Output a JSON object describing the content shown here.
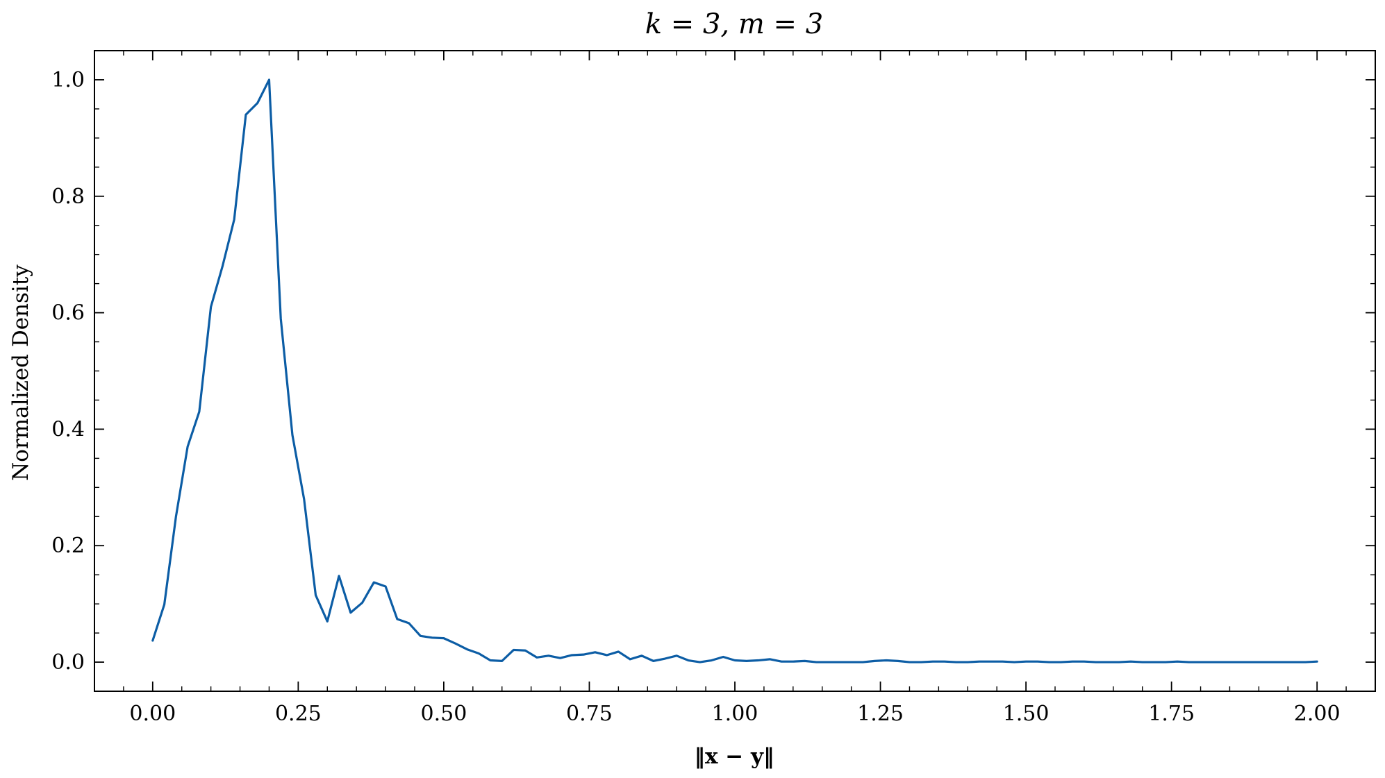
{
  "chart_data": {
    "type": "line",
    "title": "k = 3, m = 3",
    "xlabel": "‖x − y‖",
    "ylabel": "Normalized Density",
    "xlim": [
      -0.1,
      2.1
    ],
    "ylim": [
      -0.05,
      1.05
    ],
    "x_ticks": [
      0.0,
      0.25,
      0.5,
      0.75,
      1.0,
      1.25,
      1.5,
      1.75,
      2.0
    ],
    "x_tick_labels": [
      "0.00",
      "0.25",
      "0.50",
      "0.75",
      "1.00",
      "1.25",
      "1.50",
      "1.75",
      "2.00"
    ],
    "y_ticks": [
      0.0,
      0.2,
      0.4,
      0.6,
      0.8,
      1.0
    ],
    "y_tick_labels": [
      "0.0",
      "0.2",
      "0.4",
      "0.6",
      "0.8",
      "1.0"
    ],
    "grid": false,
    "legend": "none",
    "color": "#0C5DA5",
    "series": [
      {
        "x": [
          0.0,
          0.02,
          0.04,
          0.06,
          0.08,
          0.1,
          0.12,
          0.14,
          0.16,
          0.18,
          0.2,
          0.22,
          0.24,
          0.26,
          0.28,
          0.3,
          0.32,
          0.34,
          0.36,
          0.38,
          0.4,
          0.42,
          0.44,
          0.46,
          0.48,
          0.5,
          0.52,
          0.54,
          0.56,
          0.58,
          0.6,
          0.62,
          0.64,
          0.66,
          0.68,
          0.7,
          0.72,
          0.74,
          0.76,
          0.78,
          0.8,
          0.82,
          0.84,
          0.86,
          0.88,
          0.9,
          0.92,
          0.94,
          0.96,
          0.98,
          1.0,
          1.02,
          1.04,
          1.06,
          1.08,
          1.1,
          1.12,
          1.14,
          1.16,
          1.18,
          1.2,
          1.22,
          1.24,
          1.26,
          1.28,
          1.3,
          1.32,
          1.34,
          1.36,
          1.38,
          1.4,
          1.42,
          1.44,
          1.46,
          1.48,
          1.5,
          1.52,
          1.54,
          1.56,
          1.58,
          1.6,
          1.62,
          1.64,
          1.66,
          1.68,
          1.7,
          1.72,
          1.74,
          1.76,
          1.78,
          1.8,
          1.82,
          1.84,
          1.86,
          1.88,
          1.9,
          1.92,
          1.94,
          1.96,
          1.98,
          2.0
        ],
        "values": [
          0.037,
          0.099,
          0.25,
          0.37,
          0.43,
          0.61,
          0.68,
          0.76,
          0.94,
          0.96,
          1.0,
          0.59,
          0.39,
          0.28,
          0.115,
          0.07,
          0.148,
          0.085,
          0.102,
          0.137,
          0.13,
          0.074,
          0.067,
          0.045,
          0.042,
          0.041,
          0.032,
          0.022,
          0.015,
          0.003,
          0.002,
          0.021,
          0.02,
          0.008,
          0.011,
          0.007,
          0.012,
          0.013,
          0.017,
          0.012,
          0.018,
          0.005,
          0.011,
          0.002,
          0.006,
          0.011,
          0.003,
          0.0,
          0.003,
          0.009,
          0.003,
          0.002,
          0.003,
          0.005,
          0.001,
          0.001,
          0.002,
          0.0,
          0.0,
          0.0,
          0.0,
          0.0,
          0.002,
          0.003,
          0.002,
          0.0,
          0.0,
          0.001,
          0.001,
          0.0,
          0.0,
          0.001,
          0.001,
          0.001,
          0.0,
          0.001,
          0.001,
          0.0,
          0.0,
          0.001,
          0.001,
          0.0,
          0.0,
          0.0,
          0.001,
          0.0,
          0.0,
          0.0,
          0.001,
          0.0,
          0.0,
          0.0,
          0.0,
          0.0,
          0.0,
          0.0,
          0.0,
          0.0,
          0.0,
          0.0,
          0.001
        ]
      }
    ]
  }
}
